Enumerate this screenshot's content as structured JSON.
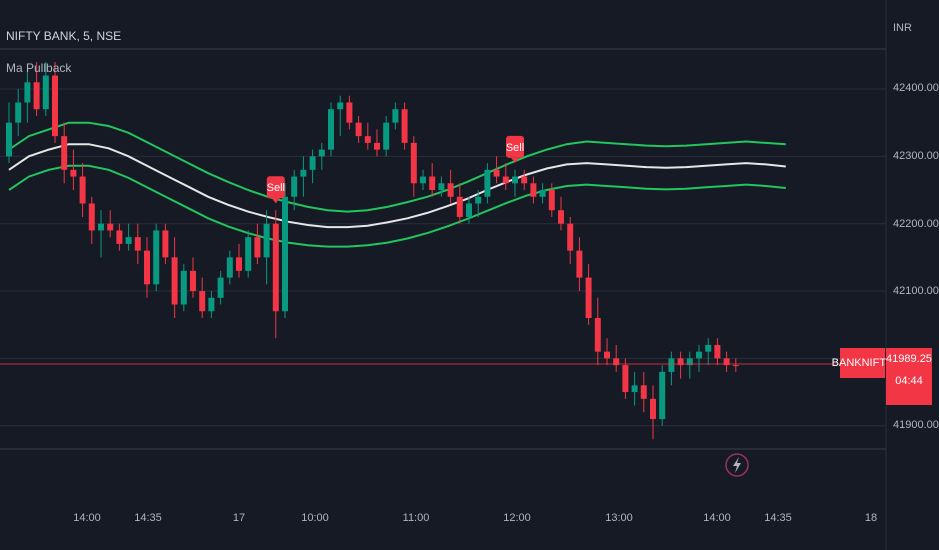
{
  "header": {
    "symbol_line": "NIFTY BANK, 5, NSE",
    "indicator": "Ma Pullback",
    "currency": "INR"
  },
  "price_tag": {
    "symbol": "BANKNIFTY",
    "price": "41989.25",
    "countdown": "04:44"
  },
  "colors": {
    "background": "#161a25",
    "grid": "#2a2e39",
    "up": "#089981",
    "down": "#f23645",
    "band": "#22c55e",
    "mid_line": "#e6e6e6",
    "price_line": "#f23645"
  },
  "chart_data": {
    "type": "candlestick",
    "title": "NIFTY BANK, 5, NSE",
    "ylim": [
      41860,
      42460
    ],
    "y_ticks": [
      "42400.00",
      "42300.00",
      "42200.00",
      "42100.00",
      "41900.00"
    ],
    "x_ticks": [
      "14:00",
      "14:35",
      "17",
      "10:00",
      "11:00",
      "12:00",
      "13:00",
      "14:00",
      "14:35",
      "18"
    ],
    "last_price": 41989.25,
    "candles": [
      [
        42300,
        42380,
        42290,
        42350
      ],
      [
        42350,
        42400,
        42330,
        42380
      ],
      [
        42380,
        42430,
        42350,
        42410
      ],
      [
        42410,
        42440,
        42360,
        42370
      ],
      [
        42370,
        42440,
        42360,
        42420
      ],
      [
        42420,
        42440,
        42320,
        42330
      ],
      [
        42330,
        42350,
        42260,
        42280
      ],
      [
        42280,
        42310,
        42250,
        42270
      ],
      [
        42270,
        42290,
        42210,
        42230
      ],
      [
        42230,
        42240,
        42170,
        42190
      ],
      [
        42190,
        42220,
        42150,
        42200
      ],
      [
        42200,
        42220,
        42180,
        42190
      ],
      [
        42190,
        42200,
        42160,
        42170
      ],
      [
        42170,
        42200,
        42160,
        42180
      ],
      [
        42180,
        42200,
        42140,
        42160
      ],
      [
        42160,
        42180,
        42090,
        42110
      ],
      [
        42110,
        42200,
        42100,
        42190
      ],
      [
        42190,
        42200,
        42140,
        42150
      ],
      [
        42150,
        42180,
        42060,
        42080
      ],
      [
        42080,
        42140,
        42070,
        42130
      ],
      [
        42130,
        42150,
        42090,
        42100
      ],
      [
        42100,
        42120,
        42060,
        42070
      ],
      [
        42070,
        42100,
        42060,
        42090
      ],
      [
        42090,
        42130,
        42080,
        42120
      ],
      [
        42120,
        42160,
        42110,
        42150
      ],
      [
        42150,
        42170,
        42120,
        42130
      ],
      [
        42130,
        42190,
        42120,
        42180
      ],
      [
        42180,
        42200,
        42140,
        42150
      ],
      [
        42150,
        42220,
        42110,
        42200
      ],
      [
        42200,
        42220,
        42030,
        42070
      ],
      [
        42070,
        42260,
        42060,
        42240
      ],
      [
        42240,
        42280,
        42220,
        42270
      ],
      [
        42270,
        42300,
        42240,
        42280
      ],
      [
        42280,
        42310,
        42260,
        42300
      ],
      [
        42300,
        42320,
        42280,
        42310
      ],
      [
        42310,
        42380,
        42300,
        42370
      ],
      [
        42370,
        42390,
        42330,
        42380
      ],
      [
        42380,
        42390,
        42340,
        42350
      ],
      [
        42350,
        42360,
        42320,
        42330
      ],
      [
        42330,
        42350,
        42310,
        42320
      ],
      [
        42320,
        42340,
        42300,
        42310
      ],
      [
        42310,
        42360,
        42300,
        42350
      ],
      [
        42350,
        42380,
        42340,
        42370
      ],
      [
        42370,
        42380,
        42310,
        42320
      ],
      [
        42320,
        42330,
        42240,
        42260
      ],
      [
        42260,
        42280,
        42250,
        42270
      ],
      [
        42270,
        42290,
        42240,
        42250
      ],
      [
        42250,
        42270,
        42240,
        42260
      ],
      [
        42260,
        42280,
        42230,
        42240
      ],
      [
        42240,
        42260,
        42200,
        42210
      ],
      [
        42210,
        42240,
        42200,
        42230
      ],
      [
        42230,
        42250,
        42210,
        42240
      ],
      [
        42240,
        42290,
        42230,
        42280
      ],
      [
        42280,
        42300,
        42260,
        42270
      ],
      [
        42270,
        42290,
        42250,
        42260
      ],
      [
        42260,
        42280,
        42240,
        42270
      ],
      [
        42270,
        42280,
        42250,
        42260
      ],
      [
        42260,
        42270,
        42230,
        42240
      ],
      [
        42240,
        42260,
        42230,
        42250
      ],
      [
        42250,
        42260,
        42210,
        42220
      ],
      [
        42220,
        42240,
        42190,
        42200
      ],
      [
        42200,
        42210,
        42140,
        42160
      ],
      [
        42160,
        42180,
        42100,
        42120
      ],
      [
        42120,
        42140,
        42050,
        42060
      ],
      [
        42060,
        42090,
        41990,
        42010
      ],
      [
        42010,
        42030,
        41990,
        42000
      ],
      [
        42000,
        42020,
        41980,
        41990
      ],
      [
        41990,
        42000,
        41940,
        41950
      ],
      [
        41950,
        41980,
        41930,
        41960
      ],
      [
        41960,
        41980,
        41920,
        41940
      ],
      [
        41940,
        41960,
        41880,
        41910
      ],
      [
        41910,
        41990,
        41900,
        41980
      ],
      [
        41980,
        42010,
        41960,
        42000
      ],
      [
        42000,
        42010,
        41970,
        41990
      ],
      [
        41990,
        42010,
        41970,
        42000
      ],
      [
        42000,
        42020,
        41980,
        42010
      ],
      [
        42010,
        42030,
        41990,
        42020
      ],
      [
        42020,
        42030,
        41990,
        42000
      ],
      [
        42000,
        42010,
        41980,
        41990
      ],
      [
        41990,
        42000,
        41980,
        41989.25
      ]
    ],
    "bands": {
      "upper": [
        42310,
        42330,
        42340,
        42350,
        42350,
        42345,
        42335,
        42320,
        42305,
        42290,
        42275,
        42262,
        42250,
        42240,
        42232,
        42225,
        42220,
        42218,
        42220,
        42225,
        42232,
        42240,
        42250,
        42262,
        42275,
        42288,
        42300,
        42310,
        42318,
        42322,
        42320,
        42318,
        42316,
        42315,
        42316,
        42318,
        42320,
        42322,
        42320,
        42318
      ],
      "mid": [
        42280,
        42300,
        42310,
        42318,
        42318,
        42312,
        42300,
        42285,
        42270,
        42255,
        42240,
        42228,
        42218,
        42210,
        42203,
        42198,
        42195,
        42195,
        42197,
        42202,
        42208,
        42216,
        42226,
        42237,
        42250,
        42262,
        42273,
        42282,
        42288,
        42290,
        42288,
        42286,
        42284,
        42283,
        42284,
        42286,
        42288,
        42290,
        42288,
        42285
      ],
      "lower": [
        42250,
        42270,
        42280,
        42286,
        42286,
        42280,
        42268,
        42253,
        42238,
        42223,
        42208,
        42196,
        42186,
        42178,
        42172,
        42168,
        42166,
        42166,
        42168,
        42172,
        42178,
        42186,
        42196,
        42207,
        42219,
        42231,
        42242,
        42250,
        42256,
        42258,
        42256,
        42254,
        42252,
        42251,
        42252,
        42254,
        42256,
        42258,
        42256,
        42253
      ]
    },
    "signals": [
      {
        "label": "Sell",
        "candle": 29
      },
      {
        "label": "Sell",
        "candle": 55
      }
    ]
  }
}
